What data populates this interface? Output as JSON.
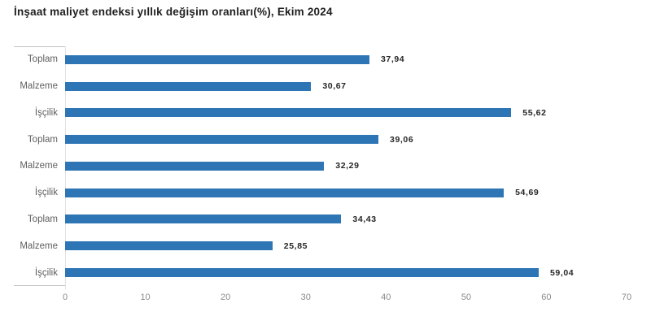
{
  "title": "İnşaat maliyet endeksi yıllık değişim oranları(%), Ekim 2024",
  "colors": {
    "bar": "#2e75b6",
    "title_text": "#1f1f1f",
    "category_text": "#5f5f5f",
    "value_text": "#262626",
    "tick_text": "#8a8a8a",
    "box_border": "#c3c3c3",
    "axis_line": "#e2e2e2",
    "background": "#ffffff"
  },
  "chart_data": {
    "type": "bar",
    "orientation": "horizontal",
    "title": "İnşaat maliyet endeksi yıllık değişim oranları(%), Ekim 2024",
    "categories": [
      "Toplam",
      "Malzeme",
      "İşçilik",
      "Toplam",
      "Malzeme",
      "İşçilik",
      "Toplam",
      "Malzeme",
      "İşçilik"
    ],
    "values": [
      37.94,
      30.67,
      55.62,
      39.06,
      32.29,
      54.69,
      34.43,
      25.85,
      59.04
    ],
    "value_labels": [
      "37,94",
      "30,67",
      "55,62",
      "39,06",
      "32,29",
      "54,69",
      "34,43",
      "25,85",
      "59,04"
    ],
    "xlabel": "",
    "ylabel": "",
    "xlim": [
      0,
      70
    ],
    "xticks": [
      0,
      10,
      20,
      30,
      40,
      50,
      60,
      70
    ],
    "grid": false,
    "legend": false
  }
}
